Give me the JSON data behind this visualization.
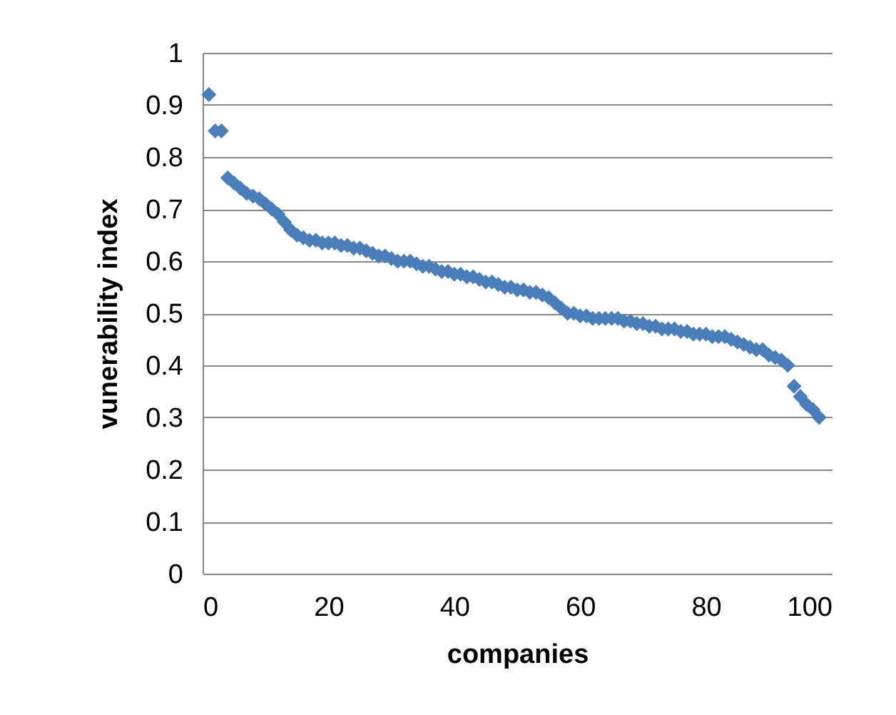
{
  "chart_data": {
    "type": "scatter",
    "xlabel": "companies",
    "ylabel": "vunerability index",
    "x": [
      1,
      2,
      3,
      4,
      5,
      6,
      7,
      8,
      9,
      10,
      11,
      12,
      13,
      14,
      15,
      16,
      17,
      18,
      19,
      20,
      21,
      22,
      23,
      24,
      25,
      26,
      27,
      28,
      29,
      30,
      31,
      32,
      33,
      34,
      35,
      36,
      37,
      38,
      39,
      40,
      41,
      42,
      43,
      44,
      45,
      46,
      47,
      48,
      49,
      50,
      51,
      52,
      53,
      54,
      55,
      56,
      57,
      58,
      59,
      60,
      61,
      62,
      63,
      64,
      65,
      66,
      67,
      68,
      69,
      70,
      71,
      72,
      73,
      74,
      75,
      76,
      77,
      78,
      79,
      80,
      81,
      82,
      83,
      84,
      85,
      86,
      87,
      88,
      89,
      90,
      91,
      92,
      93,
      94,
      95,
      96,
      97,
      98
    ],
    "series": [
      {
        "color": "#4a7ebb",
        "values": [
          0.92,
          0.85,
          0.85,
          0.76,
          0.75,
          0.74,
          0.73,
          0.725,
          0.72,
          0.71,
          0.7,
          0.69,
          0.675,
          0.66,
          0.65,
          0.645,
          0.64,
          0.64,
          0.635,
          0.635,
          0.635,
          0.63,
          0.63,
          0.625,
          0.625,
          0.62,
          0.615,
          0.61,
          0.61,
          0.605,
          0.6,
          0.6,
          0.6,
          0.595,
          0.59,
          0.59,
          0.585,
          0.58,
          0.58,
          0.575,
          0.575,
          0.57,
          0.57,
          0.565,
          0.56,
          0.56,
          0.555,
          0.55,
          0.55,
          0.545,
          0.545,
          0.54,
          0.54,
          0.535,
          0.53,
          0.52,
          0.51,
          0.5,
          0.5,
          0.495,
          0.495,
          0.49,
          0.49,
          0.49,
          0.49,
          0.49,
          0.485,
          0.485,
          0.48,
          0.48,
          0.475,
          0.475,
          0.47,
          0.47,
          0.47,
          0.465,
          0.465,
          0.46,
          0.46,
          0.46,
          0.455,
          0.455,
          0.455,
          0.45,
          0.445,
          0.44,
          0.435,
          0.43,
          0.43,
          0.42,
          0.415,
          0.41,
          0.4,
          0.36,
          0.34,
          0.325,
          0.315,
          0.3
        ]
      }
    ],
    "xlim": [
      0,
      100
    ],
    "xticks": [
      0,
      20,
      40,
      60,
      80,
      100
    ],
    "ylim": [
      0,
      1
    ],
    "yticks": [
      0,
      0.1,
      0.2,
      0.3,
      0.4,
      0.5,
      0.6,
      0.7,
      0.8,
      0.9,
      1
    ],
    "grid": "y",
    "marker": "diamond"
  }
}
